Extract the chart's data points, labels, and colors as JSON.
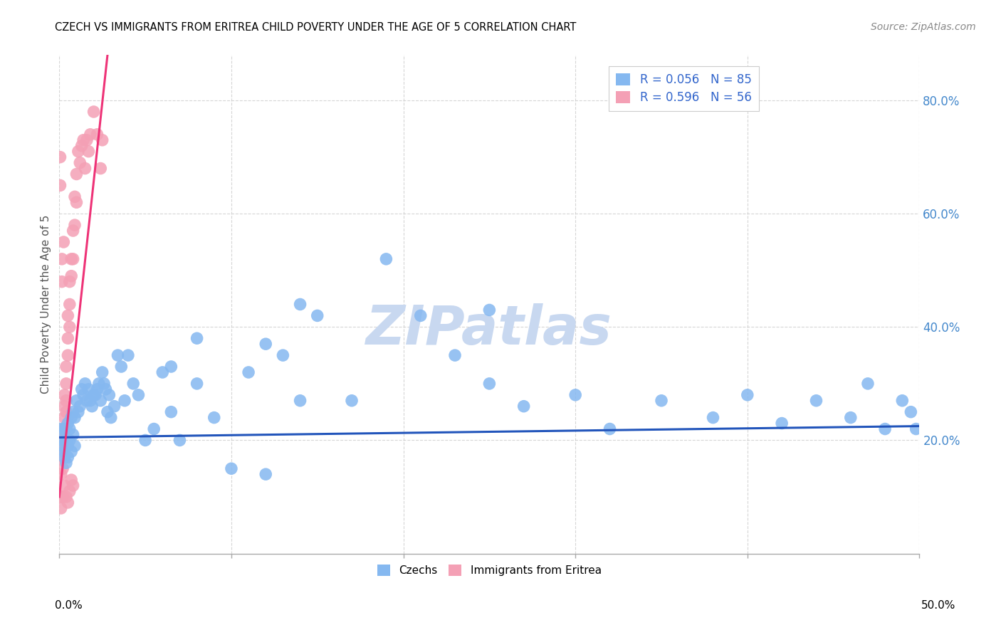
{
  "title": "CZECH VS IMMIGRANTS FROM ERITREA CHILD POVERTY UNDER THE AGE OF 5 CORRELATION CHART",
  "source": "Source: ZipAtlas.com",
  "ylabel": "Child Poverty Under the Age of 5",
  "ytick_values": [
    0.2,
    0.4,
    0.6,
    0.8
  ],
  "xlim": [
    0.0,
    0.5
  ],
  "ylim": [
    0.0,
    0.88
  ],
  "legend_czech": "R = 0.056   N = 85",
  "legend_eritrea": "R = 0.596   N = 56",
  "czech_color": "#85B8F0",
  "eritrea_color": "#F4A0B5",
  "czech_line_color": "#2255BB",
  "eritrea_line_color": "#EE3377",
  "watermark": "ZIPatlas",
  "watermark_color": "#C8D8F0",
  "czechs_x": [
    0.001,
    0.002,
    0.002,
    0.003,
    0.003,
    0.003,
    0.004,
    0.004,
    0.004,
    0.005,
    0.005,
    0.005,
    0.006,
    0.006,
    0.007,
    0.007,
    0.008,
    0.008,
    0.009,
    0.009,
    0.01,
    0.011,
    0.012,
    0.013,
    0.014,
    0.015,
    0.016,
    0.017,
    0.018,
    0.019,
    0.02,
    0.021,
    0.022,
    0.023,
    0.024,
    0.025,
    0.026,
    0.027,
    0.028,
    0.029,
    0.03,
    0.032,
    0.034,
    0.036,
    0.038,
    0.04,
    0.043,
    0.046,
    0.05,
    0.055,
    0.06,
    0.065,
    0.07,
    0.08,
    0.09,
    0.1,
    0.11,
    0.12,
    0.13,
    0.14,
    0.15,
    0.17,
    0.19,
    0.21,
    0.23,
    0.25,
    0.27,
    0.3,
    0.32,
    0.35,
    0.38,
    0.4,
    0.42,
    0.44,
    0.46,
    0.47,
    0.48,
    0.49,
    0.495,
    0.498,
    0.14,
    0.25,
    0.12,
    0.08,
    0.065
  ],
  "czechs_y": [
    0.22,
    0.2,
    0.19,
    0.22,
    0.18,
    0.17,
    0.22,
    0.2,
    0.16,
    0.23,
    0.19,
    0.17,
    0.22,
    0.2,
    0.24,
    0.18,
    0.25,
    0.21,
    0.24,
    0.19,
    0.27,
    0.25,
    0.26,
    0.29,
    0.28,
    0.3,
    0.27,
    0.29,
    0.27,
    0.26,
    0.28,
    0.28,
    0.29,
    0.3,
    0.27,
    0.32,
    0.3,
    0.29,
    0.25,
    0.28,
    0.24,
    0.26,
    0.35,
    0.33,
    0.27,
    0.35,
    0.3,
    0.28,
    0.2,
    0.22,
    0.32,
    0.25,
    0.2,
    0.3,
    0.24,
    0.15,
    0.32,
    0.14,
    0.35,
    0.27,
    0.42,
    0.27,
    0.52,
    0.42,
    0.35,
    0.3,
    0.26,
    0.28,
    0.22,
    0.27,
    0.24,
    0.28,
    0.23,
    0.27,
    0.24,
    0.3,
    0.22,
    0.27,
    0.25,
    0.22,
    0.44,
    0.43,
    0.37,
    0.38,
    0.33
  ],
  "eritrea_x": [
    0.0005,
    0.0005,
    0.001,
    0.001,
    0.001,
    0.001,
    0.001,
    0.0015,
    0.0015,
    0.002,
    0.002,
    0.002,
    0.002,
    0.0025,
    0.003,
    0.003,
    0.003,
    0.003,
    0.004,
    0.004,
    0.004,
    0.004,
    0.005,
    0.005,
    0.005,
    0.006,
    0.006,
    0.006,
    0.007,
    0.007,
    0.008,
    0.008,
    0.009,
    0.009,
    0.01,
    0.01,
    0.011,
    0.012,
    0.013,
    0.014,
    0.015,
    0.016,
    0.017,
    0.018,
    0.02,
    0.022,
    0.024,
    0.025,
    0.001,
    0.002,
    0.003,
    0.004,
    0.005,
    0.006,
    0.007,
    0.008
  ],
  "eritrea_y": [
    0.7,
    0.65,
    0.2,
    0.19,
    0.17,
    0.14,
    0.1,
    0.52,
    0.48,
    0.22,
    0.2,
    0.18,
    0.15,
    0.55,
    0.28,
    0.26,
    0.24,
    0.22,
    0.33,
    0.3,
    0.27,
    0.25,
    0.42,
    0.38,
    0.35,
    0.48,
    0.44,
    0.4,
    0.52,
    0.49,
    0.57,
    0.52,
    0.63,
    0.58,
    0.67,
    0.62,
    0.71,
    0.69,
    0.72,
    0.73,
    0.68,
    0.73,
    0.71,
    0.74,
    0.78,
    0.74,
    0.68,
    0.73,
    0.08,
    0.1,
    0.12,
    0.1,
    0.09,
    0.11,
    0.13,
    0.12
  ],
  "czech_trend_x": [
    0.0,
    0.5
  ],
  "czech_trend_y": [
    0.205,
    0.225
  ],
  "eritrea_trend_x": [
    0.0,
    0.028
  ],
  "eritrea_trend_y": [
    0.1,
    0.88
  ]
}
